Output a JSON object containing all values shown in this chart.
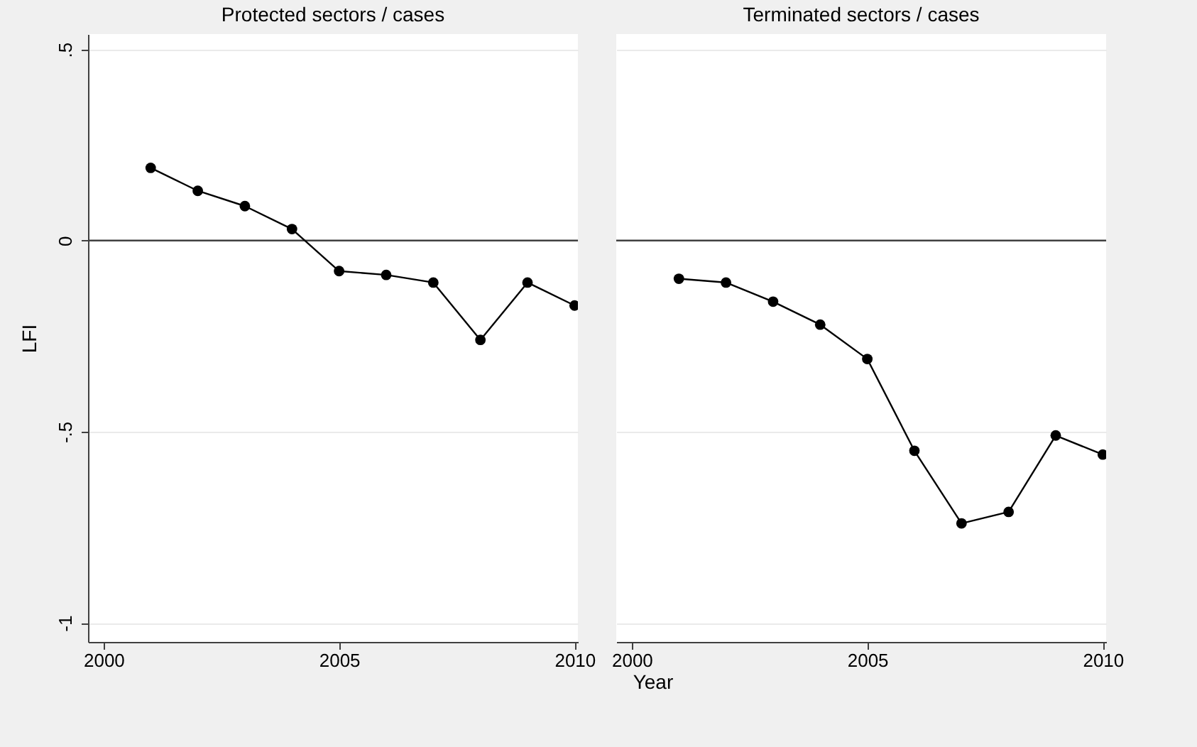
{
  "chart_data": [
    {
      "type": "line",
      "title": "Protected sectors / cases",
      "xlabel": "Year",
      "ylabel": "LFI",
      "x": [
        2001,
        2002,
        2003,
        2004,
        2005,
        2006,
        2007,
        2008,
        2009,
        2010
      ],
      "series": [
        {
          "color": "#000000",
          "values": [
            0.19,
            0.13,
            0.09,
            0.03,
            -0.08,
            -0.09,
            -0.11,
            -0.26,
            -0.11,
            -0.17
          ]
        }
      ],
      "xlim": [
        1999.67,
        2010.07
      ],
      "xticks": [
        2000,
        2005,
        2010
      ],
      "ylim": [
        -1.05,
        0.54
      ],
      "yticks": [
        {
          "value": 0.5,
          "label": ".5"
        },
        0,
        {
          "value": -0.5,
          "label": "-.5"
        },
        -1
      ],
      "ref_lines": [
        {
          "axis": "y",
          "value": 0,
          "color": "#404040"
        }
      ],
      "grid": "y",
      "marker": "circle",
      "line_style": "solid"
    },
    {
      "type": "line",
      "title": "Terminated sectors / cases",
      "x": [
        2001,
        2002,
        2003,
        2004,
        2005,
        2006,
        2007,
        2008,
        2009,
        2010
      ],
      "series": [
        {
          "color": "#000000",
          "values": [
            -0.1,
            -0.11,
            -0.16,
            -0.22,
            -0.31,
            -0.55,
            -0.74,
            -0.71,
            -0.51,
            -0.56
          ]
        }
      ],
      "xlim": [
        1999.67,
        2010.07
      ],
      "xticks": [
        2000,
        2005,
        2010
      ],
      "ylim": [
        -1.05,
        0.54
      ],
      "yticks": [
        0.5,
        0,
        -0.5,
        -1
      ],
      "ref_lines": [
        {
          "axis": "y",
          "value": 0,
          "color": "#404040"
        }
      ],
      "grid": "y",
      "marker": "circle",
      "line_style": "solid",
      "tick_labels": "x"
    }
  ]
}
